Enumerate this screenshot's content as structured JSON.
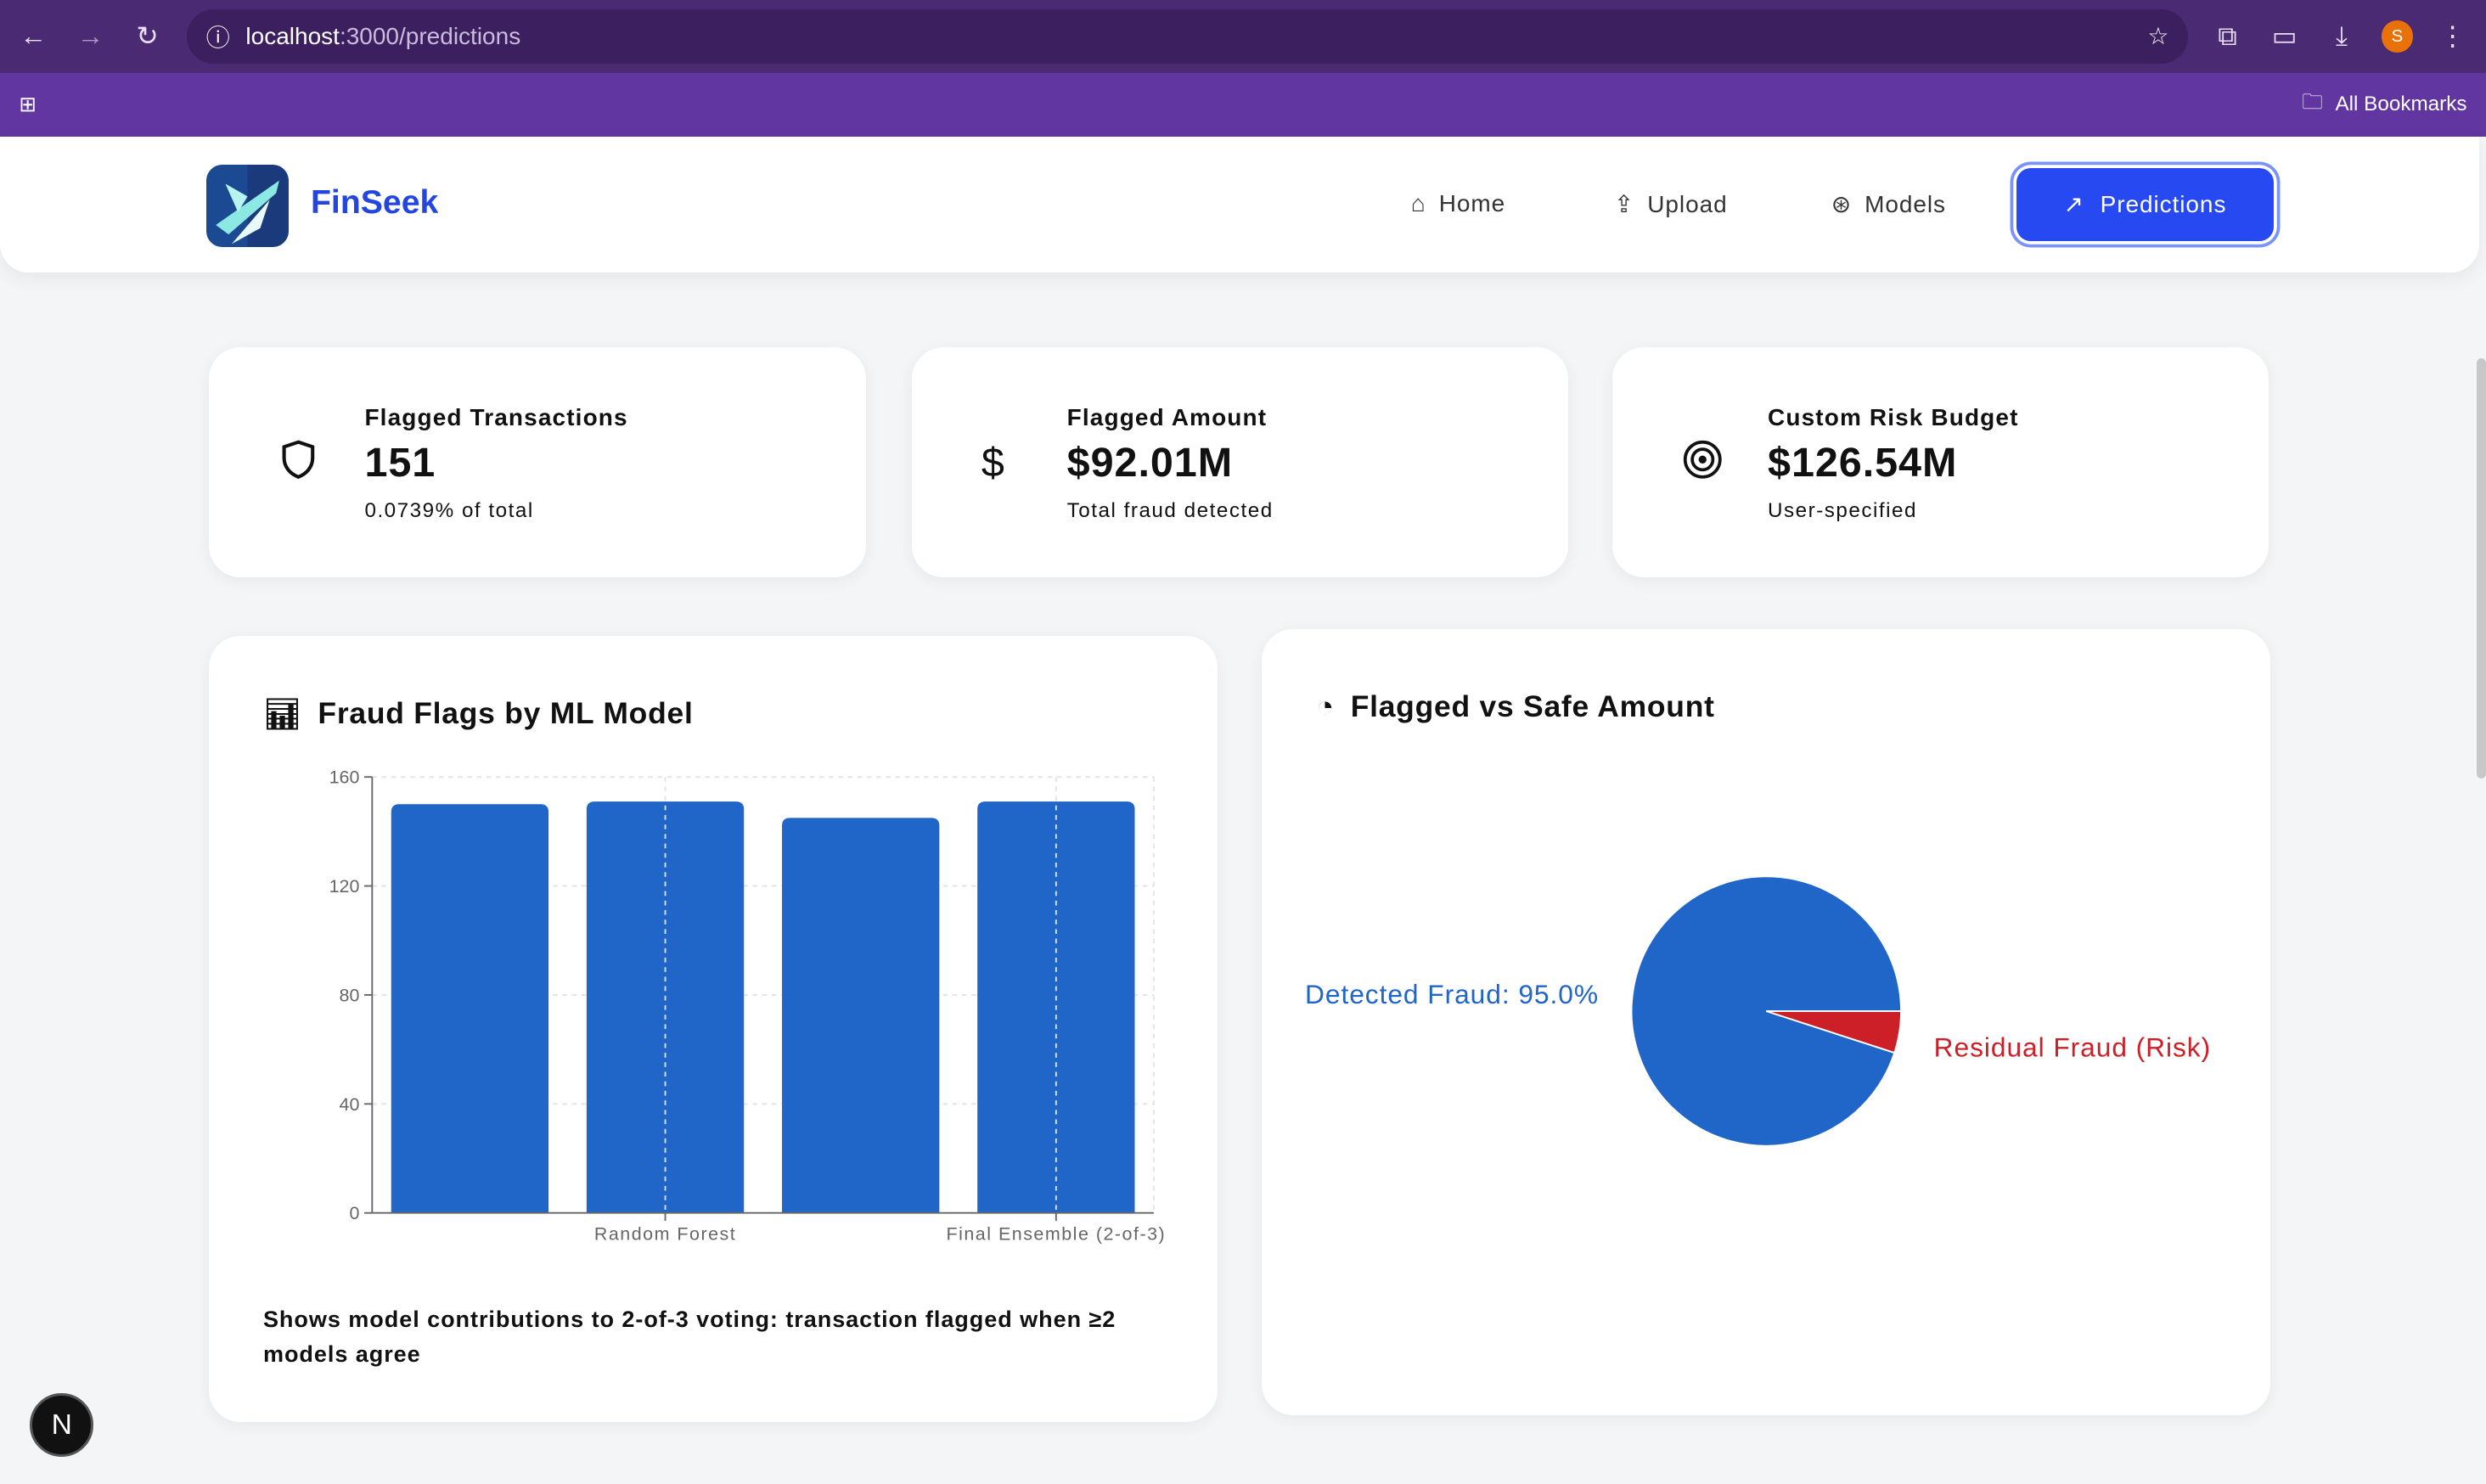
{
  "browser": {
    "url_host": "localhost",
    "url_path": ":3000/predictions",
    "bookmarks_label": "All Bookmarks",
    "profile_initial": "S"
  },
  "nav": {
    "brand": "FinSeek",
    "items": [
      {
        "label": "Home"
      },
      {
        "label": "Upload"
      },
      {
        "label": "Models"
      }
    ],
    "active": "Predictions"
  },
  "stats": [
    {
      "label": "Flagged Transactions",
      "value": "151",
      "sub": "0.0739% of total",
      "icon": "shield-icon"
    },
    {
      "label": "Flagged Amount",
      "value": "$92.01M",
      "sub": "Total fraud detected",
      "icon": "dollar-icon"
    },
    {
      "label": "Custom Risk Budget",
      "value": "$126.54M",
      "sub": "User-specified",
      "icon": "target-icon"
    }
  ],
  "bar_panel": {
    "title": "Fraud Flags by ML Model",
    "caption": "Shows model contributions to 2-of-3 voting: transaction flagged when ≥2 models agree"
  },
  "pie_panel": {
    "title": "Flagged vs Safe Amount"
  },
  "chart_data": [
    {
      "type": "bar",
      "title": "Fraud Flags by ML Model",
      "categories": [
        "",
        "Random Forest",
        "",
        "Final Ensemble (2-of-3)"
      ],
      "values": [
        150,
        151,
        145,
        151
      ],
      "ylim": [
        0,
        160
      ],
      "yticks": [
        0,
        40,
        80,
        120,
        160
      ],
      "grid": true,
      "color": "#2065c8"
    },
    {
      "type": "pie",
      "title": "Flagged vs Safe Amount",
      "slices": [
        {
          "label": "Detected Fraud: 95.0%",
          "value": 95.0,
          "color": "#2065c8"
        },
        {
          "label": "Residual Fraud (Risk)",
          "value": 5.0,
          "color": "#cc1f28"
        }
      ]
    }
  ]
}
